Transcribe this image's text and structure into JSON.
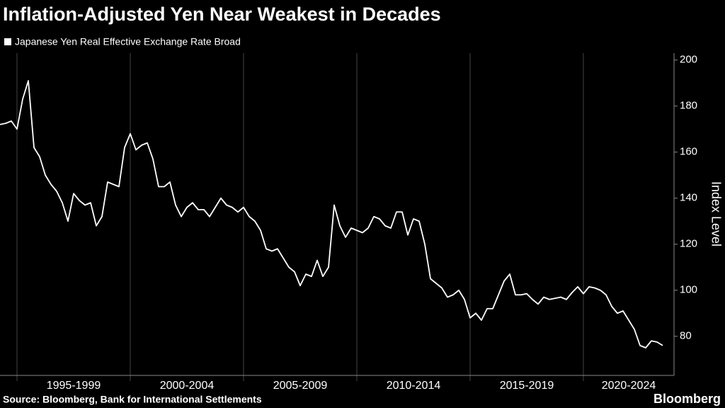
{
  "chart_data": {
    "type": "line",
    "title": "Inflation-Adjusted Yen Near Weakest in Decades",
    "source": "Source: Bloomberg, Bank for International Settlements",
    "brand": "Bloomberg",
    "y_axis_label": "Index Level",
    "series": [
      {
        "name": "Japanese Yen Real Effective Exchange Rate Broad",
        "color": "#ffffff",
        "values": [
          172,
          172.5,
          173.5,
          170,
          183,
          191,
          162,
          158,
          150,
          146,
          143,
          138,
          130,
          142,
          139,
          137,
          138,
          128,
          132,
          147,
          146,
          145,
          162,
          168,
          161,
          163,
          164,
          157,
          145,
          145,
          147,
          137,
          132,
          136,
          138,
          135,
          135,
          132,
          136,
          140,
          137,
          136,
          134,
          136,
          132,
          130,
          126,
          118,
          117,
          118,
          114,
          110,
          108,
          102,
          107,
          106,
          113,
          106,
          110,
          137,
          128,
          123,
          127,
          126,
          125,
          127,
          132,
          131,
          128,
          127,
          134,
          134,
          124,
          131,
          130,
          120,
          105,
          103,
          101,
          97,
          98,
          100,
          96,
          88,
          90,
          87,
          92,
          92,
          98,
          104,
          107,
          98,
          98,
          98.5,
          96,
          94,
          97,
          96,
          96.5,
          97,
          96,
          99,
          101.5,
          98.5,
          101.5,
          101,
          100,
          98,
          93,
          90,
          91,
          87,
          83,
          76,
          75,
          78,
          77.5,
          76
        ]
      }
    ],
    "x": [
      1994.25,
      1994.5,
      1994.75,
      1995,
      1995.25,
      1995.5,
      1995.75,
      1996,
      1996.25,
      1996.5,
      1996.75,
      1997,
      1997.25,
      1997.5,
      1997.75,
      1998,
      1998.25,
      1998.5,
      1998.75,
      1999,
      1999.25,
      1999.5,
      1999.75,
      2000,
      2000.25,
      2000.5,
      2000.75,
      2001,
      2001.25,
      2001.5,
      2001.75,
      2002,
      2002.25,
      2002.5,
      2002.75,
      2003,
      2003.25,
      2003.5,
      2003.75,
      2004,
      2004.25,
      2004.5,
      2004.75,
      2005,
      2005.25,
      2005.5,
      2005.75,
      2006,
      2006.25,
      2006.5,
      2006.75,
      2007,
      2007.25,
      2007.5,
      2007.75,
      2008,
      2008.25,
      2008.5,
      2008.75,
      2009,
      2009.25,
      2009.5,
      2009.75,
      2010,
      2010.25,
      2010.5,
      2010.75,
      2011,
      2011.25,
      2011.5,
      2011.75,
      2012,
      2012.25,
      2012.5,
      2012.75,
      2013,
      2013.25,
      2013.5,
      2013.75,
      2014,
      2014.25,
      2014.5,
      2014.75,
      2015,
      2015.25,
      2015.5,
      2015.75,
      2016,
      2016.25,
      2016.5,
      2016.75,
      2017,
      2017.25,
      2017.5,
      2017.75,
      2018,
      2018.25,
      2018.5,
      2018.75,
      2019,
      2019.25,
      2019.5,
      2019.75,
      2020,
      2020.25,
      2020.5,
      2020.75,
      2021,
      2021.25,
      2021.5,
      2021.75,
      2022,
      2022.25,
      2022.5,
      2022.75,
      2023,
      2023.25,
      2023.5
    ],
    "xlim": [
      1994.25,
      2024
    ],
    "xticks": [
      {
        "value": 1997.5,
        "label": "1995-1999"
      },
      {
        "value": 2002.5,
        "label": "2000-2004"
      },
      {
        "value": 2007.5,
        "label": "2005-2009"
      },
      {
        "value": 2012.5,
        "label": "2010-2014"
      },
      {
        "value": 2017.5,
        "label": "2015-2019"
      },
      {
        "value": 2022,
        "label": "2020-2024"
      }
    ],
    "x_separators": [
      1995,
      2000,
      2005,
      2010,
      2015,
      2020
    ],
    "ylim": [
      63,
      203
    ],
    "yticks": [
      80,
      100,
      120,
      140,
      160,
      180,
      200
    ],
    "y_axis_side": "right"
  }
}
